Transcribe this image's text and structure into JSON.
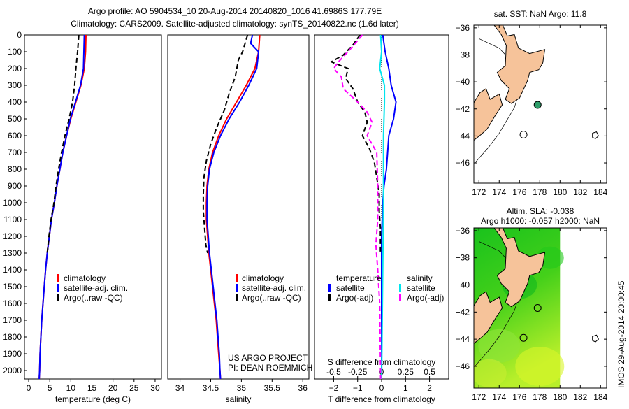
{
  "title_line1": "Argo profile: AO 5904534_10 20-Aug-2014 20140820_1016 41.6986S 177.79E",
  "title_line2": "Climatology: CARS2009. Satellite-adjusted climatology: synTS_20140822.nc (1.6d later)",
  "footer_stamp": "IMOS 29-Aug-2014 20:00:45",
  "project_line1": "US ARGO PROJECT",
  "project_line2": "PI: DEAN ROEMMICH",
  "colors": {
    "climatology": "#ff0000",
    "satellite": "#0000ff",
    "argo": "#000000",
    "sal_satellite": "#00e5ee",
    "sal_argo": "#ff00ff",
    "land": "#f6c39a"
  },
  "chart_data": [
    {
      "type": "line",
      "id": "temperature",
      "xlabel": "temperature (deg C)",
      "ylabel": "",
      "xlim": [
        -1,
        31.5
      ],
      "ylim": [
        2050,
        0
      ],
      "xticks": [
        0,
        5,
        10,
        15,
        20,
        25,
        30
      ],
      "yticks": [
        0,
        100,
        200,
        300,
        400,
        500,
        600,
        700,
        800,
        900,
        1000,
        1100,
        1200,
        1300,
        1400,
        1500,
        1600,
        1700,
        1800,
        1900,
        2000
      ],
      "legend": [
        "climatology",
        "satellite-adj. clim.",
        "Argo(..raw -QC)"
      ],
      "series": [
        {
          "name": "climatology",
          "color": "#ff0000",
          "dash": false,
          "points": [
            [
              13.6,
              0
            ],
            [
              13.5,
              100
            ],
            [
              13.2,
              200
            ],
            [
              12.4,
              300
            ],
            [
              11.2,
              400
            ],
            [
              10,
              500
            ],
            [
              9,
              600
            ],
            [
              8.1,
              700
            ],
            [
              7.4,
              800
            ],
            [
              6.7,
              900
            ],
            [
              6.1,
              1000
            ],
            [
              5.4,
              1100
            ],
            [
              4.9,
              1200
            ],
            [
              4.4,
              1300
            ],
            [
              4,
              1400
            ],
            [
              3.7,
              1500
            ],
            [
              3.4,
              1600
            ],
            [
              3.1,
              1700
            ],
            [
              2.9,
              1800
            ],
            [
              2.7,
              1900
            ],
            [
              2.6,
              2000
            ],
            [
              2.5,
              2050
            ]
          ]
        },
        {
          "name": "satellite-adj. clim.",
          "color": "#0000ff",
          "dash": false,
          "points": [
            [
              13.2,
              0
            ],
            [
              13.1,
              100
            ],
            [
              13,
              200
            ],
            [
              12.3,
              300
            ],
            [
              11.1,
              400
            ],
            [
              9.9,
              500
            ],
            [
              9,
              600
            ],
            [
              8.1,
              700
            ],
            [
              7.4,
              800
            ],
            [
              6.7,
              900
            ],
            [
              6.1,
              1000
            ],
            [
              5.4,
              1100
            ],
            [
              4.9,
              1200
            ],
            [
              4.4,
              1300
            ],
            [
              4,
              1400
            ],
            [
              3.7,
              1500
            ],
            [
              3.4,
              1600
            ],
            [
              3.1,
              1700
            ],
            [
              2.9,
              1800
            ],
            [
              2.7,
              1900
            ],
            [
              2.6,
              2000
            ],
            [
              2.5,
              2050
            ]
          ]
        },
        {
          "name": "Argo(..raw -QC)",
          "color": "#000000",
          "dash": true,
          "points": [
            [
              11.9,
              0
            ],
            [
              11.6,
              100
            ],
            [
              11.2,
              200
            ],
            [
              10.9,
              300
            ],
            [
              10.4,
              400
            ],
            [
              9.6,
              500
            ],
            [
              8.6,
              600
            ],
            [
              7.8,
              700
            ],
            [
              7.1,
              800
            ],
            [
              6.5,
              900
            ],
            [
              6,
              1000
            ],
            [
              5.3,
              1100
            ],
            [
              4.8,
              1200
            ],
            [
              4.4,
              1300
            ]
          ]
        }
      ]
    },
    {
      "type": "line",
      "id": "salinity",
      "xlabel": "salinity",
      "ylabel": "",
      "xlim": [
        33.8,
        36.1
      ],
      "ylim": [
        2050,
        0
      ],
      "xticks": [
        34,
        34.5,
        35,
        35.5,
        36
      ],
      "legend": [
        "climatology",
        "satellite-adj. clim.",
        "Argo(..raw -QC)"
      ],
      "series": [
        {
          "name": "climatology",
          "color": "#ff0000",
          "dash": false,
          "points": [
            [
              35.3,
              0
            ],
            [
              35.28,
              100
            ],
            [
              35.22,
              200
            ],
            [
              35.08,
              300
            ],
            [
              34.92,
              400
            ],
            [
              34.76,
              500
            ],
            [
              34.63,
              600
            ],
            [
              34.53,
              700
            ],
            [
              34.47,
              800
            ],
            [
              34.44,
              900
            ],
            [
              34.43,
              1000
            ],
            [
              34.43,
              1100
            ],
            [
              34.45,
              1200
            ],
            [
              34.47,
              1300
            ],
            [
              34.5,
              1400
            ],
            [
              34.53,
              1500
            ],
            [
              34.56,
              1600
            ],
            [
              34.59,
              1700
            ],
            [
              34.61,
              1800
            ],
            [
              34.63,
              1900
            ],
            [
              34.65,
              2000
            ],
            [
              34.66,
              2050
            ]
          ]
        },
        {
          "name": "satellite-adj. clim.",
          "color": "#0000ff",
          "dash": false,
          "points": [
            [
              35.18,
              0
            ],
            [
              35.15,
              50
            ],
            [
              35.28,
              100
            ],
            [
              35.25,
              200
            ],
            [
              35.12,
              300
            ],
            [
              34.97,
              400
            ],
            [
              34.8,
              500
            ],
            [
              34.66,
              600
            ],
            [
              34.55,
              700
            ],
            [
              34.48,
              800
            ],
            [
              34.45,
              900
            ],
            [
              34.44,
              1000
            ],
            [
              34.44,
              1100
            ],
            [
              34.46,
              1200
            ],
            [
              34.48,
              1300
            ],
            [
              34.51,
              1400
            ],
            [
              34.54,
              1500
            ],
            [
              34.57,
              1600
            ],
            [
              34.6,
              1700
            ],
            [
              34.62,
              1800
            ],
            [
              34.64,
              1900
            ],
            [
              34.65,
              2000
            ],
            [
              34.66,
              2050
            ]
          ]
        },
        {
          "name": "Argo(..raw -QC)",
          "color": "#000000",
          "dash": true,
          "points": [
            [
              35.1,
              0
            ],
            [
              35.02,
              100
            ],
            [
              34.95,
              150
            ],
            [
              34.9,
              250
            ],
            [
              34.8,
              350
            ],
            [
              34.72,
              450
            ],
            [
              34.6,
              550
            ],
            [
              34.5,
              650
            ],
            [
              34.43,
              750
            ],
            [
              34.39,
              850
            ],
            [
              34.38,
              950
            ],
            [
              34.38,
              1050
            ],
            [
              34.4,
              1150
            ],
            [
              34.42,
              1250
            ],
            [
              34.45,
              1300
            ]
          ]
        }
      ]
    },
    {
      "type": "line",
      "id": "difference",
      "xlabel": "T difference from climatology",
      "x2label": "S difference from climatology",
      "xlim": [
        -2.8,
        2.8
      ],
      "x2lim": [
        -0.7,
        0.7
      ],
      "ylim": [
        2050,
        0
      ],
      "xticks": [
        -2,
        -1,
        0,
        1,
        2
      ],
      "x2ticks": [
        -0.5,
        -0.25,
        0,
        0.25,
        0.5
      ],
      "legend_headers": [
        "temperature",
        "salinity"
      ],
      "legend": [
        "satellite",
        "Argo(-adj)",
        "satellite",
        "Argo(-adj)"
      ],
      "series": [
        {
          "name": "T satellite",
          "color": "#0000ff",
          "dash": false,
          "axis": "x",
          "points": [
            [
              0.05,
              0
            ],
            [
              0.15,
              100
            ],
            [
              0.3,
              200
            ],
            [
              0.4,
              300
            ],
            [
              0.6,
              400
            ],
            [
              0.5,
              500
            ],
            [
              0.3,
              600
            ],
            [
              0.25,
              700
            ],
            [
              0.2,
              800
            ],
            [
              0.1,
              900
            ],
            [
              0.05,
              1000
            ],
            [
              0,
              1200
            ],
            [
              0,
              1500
            ],
            [
              0,
              2050
            ]
          ]
        },
        {
          "name": "T Argo(-adj)",
          "color": "#000000",
          "dash": true,
          "axis": "x",
          "points": [
            [
              -0.9,
              0
            ],
            [
              -1.2,
              60
            ],
            [
              -1.6,
              120
            ],
            [
              -2.1,
              160
            ],
            [
              -1.4,
              200
            ],
            [
              -1.5,
              260
            ],
            [
              -1.2,
              320
            ],
            [
              -1,
              400
            ],
            [
              -0.7,
              460
            ],
            [
              -0.6,
              520
            ],
            [
              -0.8,
              600
            ],
            [
              -0.5,
              680
            ],
            [
              -0.3,
              760
            ],
            [
              -0.2,
              850
            ],
            [
              -0.1,
              950
            ],
            [
              -0.1,
              1050
            ],
            [
              -0.05,
              1150
            ],
            [
              -0.05,
              1300
            ]
          ]
        },
        {
          "name": "S satellite",
          "color": "#00e5ee",
          "dash": false,
          "axis": "x2",
          "points": [
            [
              -0.01,
              0
            ],
            [
              0.0,
              100
            ],
            [
              -0.02,
              200
            ],
            [
              0.03,
              300
            ],
            [
              0.03,
              400
            ],
            [
              0.02,
              600
            ],
            [
              0.02,
              1000
            ],
            [
              0.01,
              1500
            ],
            [
              0,
              2050
            ]
          ]
        },
        {
          "name": "S Argo(-adj)",
          "color": "#ff00ff",
          "dash": true,
          "axis": "x2",
          "points": [
            [
              -0.2,
              0
            ],
            [
              -0.35,
              100
            ],
            [
              -0.45,
              160
            ],
            [
              -0.5,
              200
            ],
            [
              -0.42,
              250
            ],
            [
              -0.4,
              320
            ],
            [
              -0.25,
              400
            ],
            [
              -0.15,
              460
            ],
            [
              -0.1,
              520
            ],
            [
              -0.15,
              600
            ],
            [
              -0.05,
              700
            ],
            [
              -0.04,
              900
            ],
            [
              -0.04,
              1100
            ],
            [
              -0.06,
              1250
            ],
            [
              -0.04,
              1400
            ],
            [
              -0.02,
              1600
            ],
            [
              -0.01,
              2050
            ]
          ]
        }
      ]
    },
    {
      "type": "map",
      "id": "sst-map",
      "title": "sat. SST: NaN Argo: 11.8",
      "xlim": [
        171.5,
        184.6
      ],
      "ylim": [
        -47.5,
        -35.8
      ],
      "xticks": [
        172,
        174,
        176,
        178,
        180,
        182,
        184
      ],
      "yticks": [
        -36,
        -38,
        -40,
        -42,
        -44,
        -46
      ],
      "float_position": [
        177.79,
        -41.6986
      ]
    },
    {
      "type": "map",
      "id": "sla-map",
      "title_line1": "Altim. SLA: -0.038",
      "title_line2": "Argo h1000: -0.057 h2000: NaN",
      "xlim": [
        171.5,
        184.6
      ],
      "ylim": [
        -47.6,
        -35.8
      ],
      "xticks": [
        172,
        174,
        176,
        178,
        180,
        182,
        184
      ],
      "yticks": [
        -36,
        -38,
        -40,
        -42,
        -44,
        -46
      ],
      "float_position": [
        177.79,
        -41.6986
      ]
    }
  ]
}
